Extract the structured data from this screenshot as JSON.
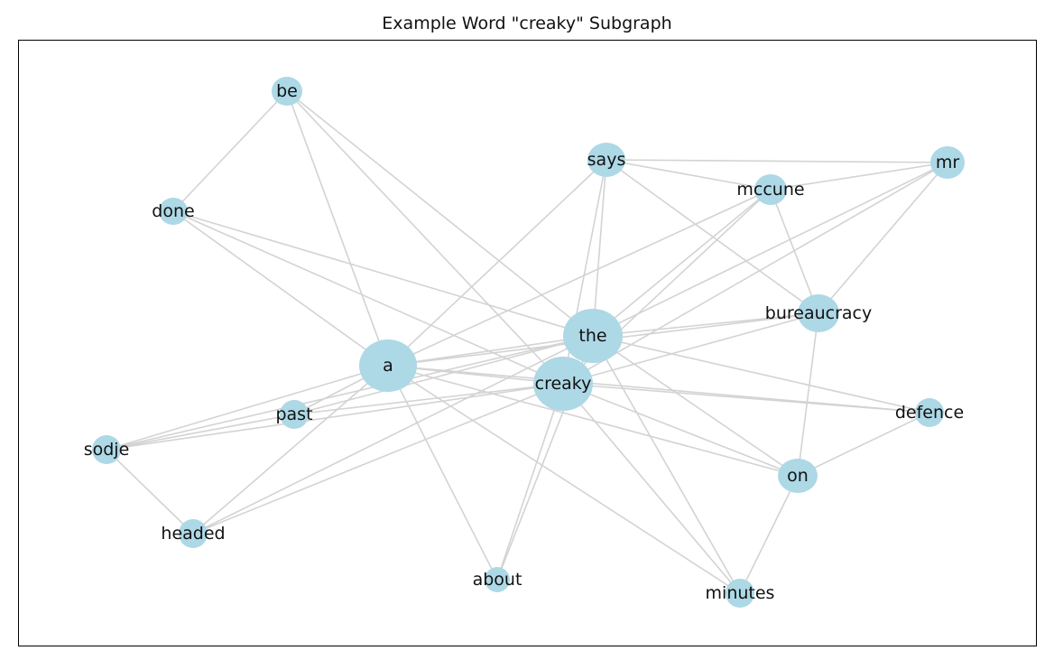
{
  "title": "Example Word \"creaky\" Subgraph",
  "graph": {
    "node_color": "#add8e6",
    "edge_color": "#d3d3d3",
    "nodes": [
      {
        "id": "be",
        "label": "be"
      },
      {
        "id": "says",
        "label": "says"
      },
      {
        "id": "mr",
        "label": "mr"
      },
      {
        "id": "mccune",
        "label": "mccune"
      },
      {
        "id": "done",
        "label": "done"
      },
      {
        "id": "bureaucracy",
        "label": "bureaucracy"
      },
      {
        "id": "the",
        "label": "the"
      },
      {
        "id": "a",
        "label": "a"
      },
      {
        "id": "creaky",
        "label": "creaky"
      },
      {
        "id": "past",
        "label": "past"
      },
      {
        "id": "defence",
        "label": "defence"
      },
      {
        "id": "sodje",
        "label": "sodje"
      },
      {
        "id": "on",
        "label": "on"
      },
      {
        "id": "headed",
        "label": "headed"
      },
      {
        "id": "about",
        "label": "about"
      },
      {
        "id": "minutes",
        "label": "minutes"
      }
    ],
    "edges": [
      [
        "be",
        "done"
      ],
      [
        "be",
        "a"
      ],
      [
        "be",
        "the"
      ],
      [
        "be",
        "creaky"
      ],
      [
        "says",
        "mr"
      ],
      [
        "says",
        "mccune"
      ],
      [
        "says",
        "bureaucracy"
      ],
      [
        "says",
        "the"
      ],
      [
        "says",
        "creaky"
      ],
      [
        "says",
        "a"
      ],
      [
        "mccune",
        "mr"
      ],
      [
        "mccune",
        "bureaucracy"
      ],
      [
        "mccune",
        "the"
      ],
      [
        "mccune",
        "creaky"
      ],
      [
        "mccune",
        "a"
      ],
      [
        "mr",
        "bureaucracy"
      ],
      [
        "mr",
        "the"
      ],
      [
        "mr",
        "creaky"
      ],
      [
        "done",
        "a"
      ],
      [
        "done",
        "the"
      ],
      [
        "done",
        "creaky"
      ],
      [
        "bureaucracy",
        "the"
      ],
      [
        "bureaucracy",
        "creaky"
      ],
      [
        "bureaucracy",
        "on"
      ],
      [
        "bureaucracy",
        "a"
      ],
      [
        "the",
        "a"
      ],
      [
        "the",
        "past"
      ],
      [
        "the",
        "sodje"
      ],
      [
        "the",
        "headed"
      ],
      [
        "the",
        "defence"
      ],
      [
        "the",
        "on"
      ],
      [
        "the",
        "minutes"
      ],
      [
        "the",
        "about"
      ],
      [
        "a",
        "creaky"
      ],
      [
        "a",
        "past"
      ],
      [
        "a",
        "headed"
      ],
      [
        "a",
        "about"
      ],
      [
        "a",
        "minutes"
      ],
      [
        "a",
        "on"
      ],
      [
        "a",
        "defence"
      ],
      [
        "a",
        "sodje"
      ],
      [
        "creaky",
        "past"
      ],
      [
        "creaky",
        "sodje"
      ],
      [
        "creaky",
        "headed"
      ],
      [
        "creaky",
        "defence"
      ],
      [
        "creaky",
        "on"
      ],
      [
        "creaky",
        "about"
      ],
      [
        "creaky",
        "minutes"
      ],
      [
        "sodje",
        "headed"
      ],
      [
        "sodje",
        "past"
      ],
      [
        "on",
        "defence"
      ],
      [
        "on",
        "minutes"
      ]
    ]
  }
}
